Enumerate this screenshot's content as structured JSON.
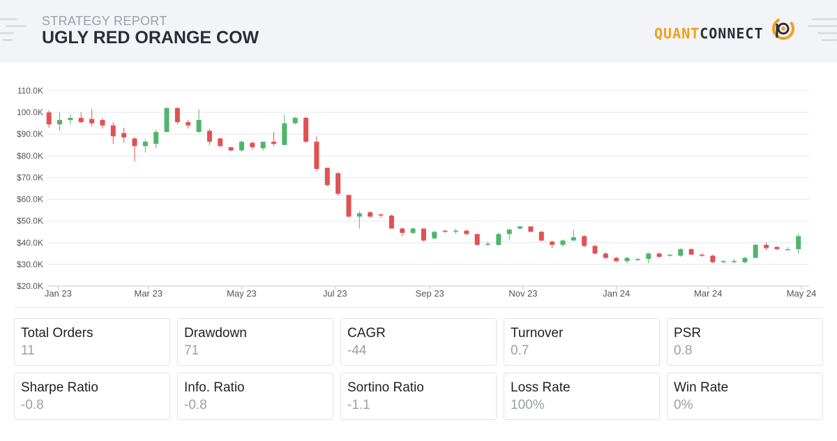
{
  "header": {
    "subtitle": "STRATEGY REPORT",
    "title": "UGLY RED ORANGE COW",
    "logo_left": "QUANT",
    "logo_right": "CONNECT"
  },
  "colors": {
    "up": "#4fb56a",
    "down": "#e05253",
    "accent": "#f29f1c",
    "grid": "#e4e6ef"
  },
  "chart_data": {
    "type": "candlestick",
    "grid": true,
    "ylim": [
      20000,
      110000
    ],
    "y_ticks": [
      {
        "value": 110000,
        "label": "110.0K"
      },
      {
        "value": 100000,
        "label": "100.0K"
      },
      {
        "value": 90000,
        "label": "$90.0K"
      },
      {
        "value": 80000,
        "label": "$80.0K"
      },
      {
        "value": 70000,
        "label": "$70.0K"
      },
      {
        "value": 60000,
        "label": "$60.0K"
      },
      {
        "value": 50000,
        "label": "$50.0K"
      },
      {
        "value": 40000,
        "label": "$40.0K"
      },
      {
        "value": 30000,
        "label": "$30.0K"
      },
      {
        "value": 20000,
        "label": "$20.0K"
      }
    ],
    "xlim": [
      "2022-12-25",
      "2024-05-06"
    ],
    "x_ticks": [
      {
        "date": "2023-01-01",
        "label": "Jan 23"
      },
      {
        "date": "2023-03-01",
        "label": "Mar 23"
      },
      {
        "date": "2023-05-01",
        "label": "May 23"
      },
      {
        "date": "2023-07-01",
        "label": "Jul 23"
      },
      {
        "date": "2023-09-01",
        "label": "Sep 23"
      },
      {
        "date": "2023-11-01",
        "label": "Nov 23"
      },
      {
        "date": "2024-01-01",
        "label": "Jan 24"
      },
      {
        "date": "2024-03-01",
        "label": "Mar 24"
      },
      {
        "date": "2024-05-01",
        "label": "May 24"
      }
    ],
    "candles": [
      {
        "date": "2022-12-26",
        "o": 100000,
        "h": 101000,
        "l": 93000,
        "c": 94500
      },
      {
        "date": "2023-01-02",
        "o": 94500,
        "h": 100000,
        "l": 91500,
        "c": 96500
      },
      {
        "date": "2023-01-09",
        "o": 96500,
        "h": 99000,
        "l": 94500,
        "c": 97500
      },
      {
        "date": "2023-01-16",
        "o": 97500,
        "h": 100000,
        "l": 95000,
        "c": 95500
      },
      {
        "date": "2023-01-23",
        "o": 97000,
        "h": 101500,
        "l": 93500,
        "c": 95000
      },
      {
        "date": "2023-01-30",
        "o": 96500,
        "h": 97500,
        "l": 92500,
        "c": 94000
      },
      {
        "date": "2023-02-06",
        "o": 94000,
        "h": 95500,
        "l": 85500,
        "c": 89000
      },
      {
        "date": "2023-02-13",
        "o": 90500,
        "h": 93000,
        "l": 86000,
        "c": 88500
      },
      {
        "date": "2023-02-20",
        "o": 88000,
        "h": 88500,
        "l": 77500,
        "c": 84500
      },
      {
        "date": "2023-02-27",
        "o": 84500,
        "h": 87500,
        "l": 81500,
        "c": 86500
      },
      {
        "date": "2023-03-06",
        "o": 85500,
        "h": 92000,
        "l": 83500,
        "c": 91000
      },
      {
        "date": "2023-03-13",
        "o": 91000,
        "h": 102500,
        "l": 91000,
        "c": 102000
      },
      {
        "date": "2023-03-20",
        "o": 102000,
        "h": 102500,
        "l": 94500,
        "c": 95500
      },
      {
        "date": "2023-03-27",
        "o": 95500,
        "h": 96500,
        "l": 92500,
        "c": 94000
      },
      {
        "date": "2023-04-03",
        "o": 91000,
        "h": 101500,
        "l": 90500,
        "c": 96500
      },
      {
        "date": "2023-04-10",
        "o": 91500,
        "h": 92500,
        "l": 85000,
        "c": 86500
      },
      {
        "date": "2023-04-17",
        "o": 88000,
        "h": 88500,
        "l": 84000,
        "c": 84500
      },
      {
        "date": "2023-04-24",
        "o": 84000,
        "h": 84000,
        "l": 82000,
        "c": 82500
      },
      {
        "date": "2023-05-01",
        "o": 82500,
        "h": 87000,
        "l": 82000,
        "c": 86500
      },
      {
        "date": "2023-05-08",
        "o": 86000,
        "h": 86500,
        "l": 83000,
        "c": 84000
      },
      {
        "date": "2023-05-15",
        "o": 83500,
        "h": 86500,
        "l": 82500,
        "c": 86500
      },
      {
        "date": "2023-05-22",
        "o": 86500,
        "h": 91000,
        "l": 84500,
        "c": 85500
      },
      {
        "date": "2023-05-29",
        "o": 85000,
        "h": 99000,
        "l": 85000,
        "c": 95000
      },
      {
        "date": "2023-06-05",
        "o": 95000,
        "h": 98000,
        "l": 94500,
        "c": 97500
      },
      {
        "date": "2023-06-12",
        "o": 97500,
        "h": 98000,
        "l": 86000,
        "c": 86500
      },
      {
        "date": "2023-06-19",
        "o": 86500,
        "h": 89000,
        "l": 73000,
        "c": 74000
      },
      {
        "date": "2023-06-26",
        "o": 74500,
        "h": 74500,
        "l": 66000,
        "c": 66500
      },
      {
        "date": "2023-07-03",
        "o": 72000,
        "h": 72500,
        "l": 61500,
        "c": 62500
      },
      {
        "date": "2023-07-10",
        "o": 62000,
        "h": 62000,
        "l": 51500,
        "c": 52000
      },
      {
        "date": "2023-07-17",
        "o": 52000,
        "h": 54500,
        "l": 46500,
        "c": 53500
      },
      {
        "date": "2023-07-24",
        "o": 54000,
        "h": 54500,
        "l": 51500,
        "c": 52000
      },
      {
        "date": "2023-07-31",
        "o": 53000,
        "h": 53500,
        "l": 51500,
        "c": 52500
      },
      {
        "date": "2023-08-07",
        "o": 52500,
        "h": 53000,
        "l": 46500,
        "c": 46500
      },
      {
        "date": "2023-08-14",
        "o": 46500,
        "h": 47000,
        "l": 43000,
        "c": 44500
      },
      {
        "date": "2023-08-21",
        "o": 44500,
        "h": 47000,
        "l": 44000,
        "c": 46500
      },
      {
        "date": "2023-08-28",
        "o": 46500,
        "h": 46500,
        "l": 40500,
        "c": 41000
      },
      {
        "date": "2023-09-04",
        "o": 42000,
        "h": 45500,
        "l": 41500,
        "c": 45000
      },
      {
        "date": "2023-09-11",
        "o": 45500,
        "h": 46000,
        "l": 44500,
        "c": 45000
      },
      {
        "date": "2023-09-18",
        "o": 45000,
        "h": 46500,
        "l": 44000,
        "c": 45500
      },
      {
        "date": "2023-09-25",
        "o": 45500,
        "h": 46000,
        "l": 43500,
        "c": 44000
      },
      {
        "date": "2023-10-02",
        "o": 44000,
        "h": 44000,
        "l": 38500,
        "c": 39000
      },
      {
        "date": "2023-10-09",
        "o": 39000,
        "h": 40500,
        "l": 38500,
        "c": 39500
      },
      {
        "date": "2023-10-16",
        "o": 39000,
        "h": 44500,
        "l": 38500,
        "c": 44000
      },
      {
        "date": "2023-10-23",
        "o": 44000,
        "h": 46500,
        "l": 41000,
        "c": 46000
      },
      {
        "date": "2023-10-30",
        "o": 46500,
        "h": 47500,
        "l": 46000,
        "c": 47500
      },
      {
        "date": "2023-11-06",
        "o": 47500,
        "h": 47500,
        "l": 45000,
        "c": 45000
      },
      {
        "date": "2023-11-13",
        "o": 45000,
        "h": 45500,
        "l": 40500,
        "c": 41000
      },
      {
        "date": "2023-11-20",
        "o": 40500,
        "h": 41000,
        "l": 37500,
        "c": 39000
      },
      {
        "date": "2023-11-27",
        "o": 39000,
        "h": 41500,
        "l": 38000,
        "c": 41000
      },
      {
        "date": "2023-12-04",
        "o": 41000,
        "h": 46000,
        "l": 41000,
        "c": 42500
      },
      {
        "date": "2023-12-11",
        "o": 43000,
        "h": 43500,
        "l": 38000,
        "c": 38500
      },
      {
        "date": "2023-12-18",
        "o": 38500,
        "h": 39000,
        "l": 34500,
        "c": 35000
      },
      {
        "date": "2023-12-25",
        "o": 35000,
        "h": 35500,
        "l": 32500,
        "c": 33000
      },
      {
        "date": "2024-01-01",
        "o": 33000,
        "h": 33500,
        "l": 31000,
        "c": 31500
      },
      {
        "date": "2024-01-08",
        "o": 31500,
        "h": 33500,
        "l": 30500,
        "c": 33000
      },
      {
        "date": "2024-01-15",
        "o": 32000,
        "h": 33000,
        "l": 31500,
        "c": 32500
      },
      {
        "date": "2024-01-22",
        "o": 32500,
        "h": 35500,
        "l": 30500,
        "c": 35000
      },
      {
        "date": "2024-01-29",
        "o": 35000,
        "h": 35500,
        "l": 33000,
        "c": 33500
      },
      {
        "date": "2024-02-05",
        "o": 34000,
        "h": 34500,
        "l": 33500,
        "c": 34500
      },
      {
        "date": "2024-02-12",
        "o": 34000,
        "h": 37500,
        "l": 33500,
        "c": 37000
      },
      {
        "date": "2024-02-19",
        "o": 37000,
        "h": 37500,
        "l": 34500,
        "c": 34500
      },
      {
        "date": "2024-02-26",
        "o": 34500,
        "h": 35000,
        "l": 33500,
        "c": 34000
      },
      {
        "date": "2024-03-04",
        "o": 34000,
        "h": 34500,
        "l": 30500,
        "c": 31000
      },
      {
        "date": "2024-03-11",
        "o": 31500,
        "h": 32000,
        "l": 30500,
        "c": 31500
      },
      {
        "date": "2024-03-18",
        "o": 31500,
        "h": 32500,
        "l": 30500,
        "c": 31500
      },
      {
        "date": "2024-03-25",
        "o": 31000,
        "h": 33500,
        "l": 30500,
        "c": 33000
      },
      {
        "date": "2024-04-01",
        "o": 33000,
        "h": 39500,
        "l": 33000,
        "c": 39000
      },
      {
        "date": "2024-04-08",
        "o": 39000,
        "h": 40000,
        "l": 36500,
        "c": 37500
      },
      {
        "date": "2024-04-15",
        "o": 38000,
        "h": 38500,
        "l": 36500,
        "c": 37000
      },
      {
        "date": "2024-04-22",
        "o": 37000,
        "h": 38000,
        "l": 36500,
        "c": 37000
      },
      {
        "date": "2024-04-29",
        "o": 37000,
        "h": 44000,
        "l": 35000,
        "c": 43000
      }
    ]
  },
  "stats": [
    {
      "label": "Total Orders",
      "value": "11"
    },
    {
      "label": "Drawdown",
      "value": "71"
    },
    {
      "label": "CAGR",
      "value": "-44"
    },
    {
      "label": "Turnover",
      "value": "0.7"
    },
    {
      "label": "PSR",
      "value": "0.8"
    },
    {
      "label": "Sharpe Ratio",
      "value": "-0.8"
    },
    {
      "label": "Info. Ratio",
      "value": "-0.8"
    },
    {
      "label": "Sortino Ratio",
      "value": "-1.1"
    },
    {
      "label": "Loss Rate",
      "value": "100%"
    },
    {
      "label": "Win Rate",
      "value": "0%"
    }
  ]
}
